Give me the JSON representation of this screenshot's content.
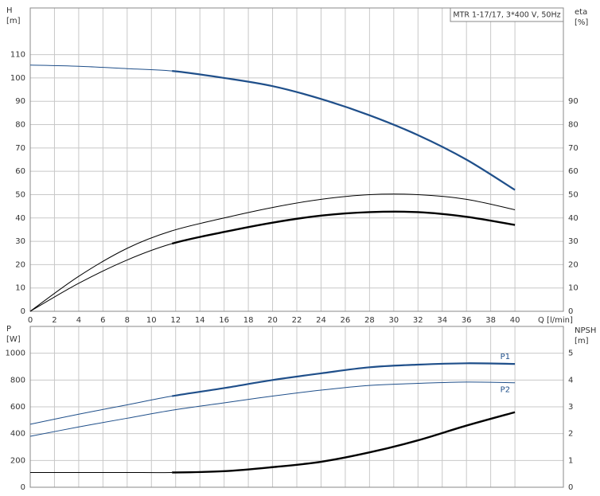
{
  "chart_data": [
    {
      "type": "line",
      "title": "MTR 1-17/17, 3*400 V, 50Hz",
      "ylabel": [
        "H",
        "[m]"
      ],
      "y2label": [
        "eta",
        "[%]"
      ],
      "xlabel": "Q [l/min]",
      "x": [
        0,
        4,
        8,
        11.7,
        16,
        20,
        24,
        28,
        32,
        36,
        40
      ],
      "xlim": [
        0,
        44
      ],
      "xticks": [
        0,
        2,
        4,
        6,
        8,
        10,
        12,
        14,
        16,
        18,
        20,
        22,
        24,
        26,
        28,
        30,
        32,
        34,
        36,
        38,
        40
      ],
      "ylim": [
        0,
        130
      ],
      "yticks": [
        0,
        10,
        20,
        30,
        40,
        50,
        60,
        70,
        80,
        90,
        100,
        110
      ],
      "y2lim": [
        0,
        130
      ],
      "y2ticks": [
        0,
        10,
        20,
        30,
        40,
        50,
        60,
        70,
        80,
        90
      ],
      "grid": true,
      "bold_from_x": 11.7,
      "series": [
        {
          "color": "#1f4f8a",
          "linewidth": 2.2,
          "values": [
            105.5,
            105,
            104,
            103,
            100,
            96.5,
            91,
            84,
            75.5,
            65,
            52
          ]
        },
        {
          "color": "#000000",
          "linewidth": 1,
          "axis": "y2",
          "values": [
            0,
            15,
            27,
            34.5,
            40,
            44.5,
            48,
            50,
            50,
            48,
            43.5
          ]
        },
        {
          "color": "#000000",
          "linewidth": 2.4,
          "axis": "y2",
          "values": [
            0,
            12,
            22,
            29,
            34,
            38,
            41,
            42.5,
            42.5,
            40.5,
            37
          ]
        }
      ]
    },
    {
      "type": "line",
      "ylabel": [
        "P",
        "[W]"
      ],
      "y2label": [
        "NPSH",
        "[m]"
      ],
      "x": [
        0,
        4,
        8,
        11.7,
        16,
        20,
        24,
        28,
        32,
        36,
        40
      ],
      "xlim": [
        0,
        44
      ],
      "ylim": [
        0,
        1200
      ],
      "yticks": [
        0,
        200,
        400,
        600,
        800,
        1000
      ],
      "y2lim": [
        0,
        6
      ],
      "y2ticks": [
        0,
        1,
        2,
        3,
        4,
        5
      ],
      "grid": true,
      "bold_from_x": 11.7,
      "series": [
        {
          "name": "P1",
          "color": "#1f4f8a",
          "linewidth": 2.2,
          "values": [
            470,
            545,
            615,
            680,
            740,
            800,
            850,
            895,
            915,
            925,
            920
          ]
        },
        {
          "name": "P2",
          "color": "#1f4f8a",
          "linewidth": 1,
          "values": [
            380,
            450,
            515,
            575,
            630,
            680,
            725,
            760,
            775,
            785,
            780
          ]
        },
        {
          "color": "#000000",
          "linewidth": 2.4,
          "axis": "y2",
          "values": [
            0.55,
            0.55,
            0.55,
            0.55,
            0.6,
            0.75,
            0.95,
            1.3,
            1.75,
            2.3,
            2.8
          ]
        }
      ]
    }
  ]
}
